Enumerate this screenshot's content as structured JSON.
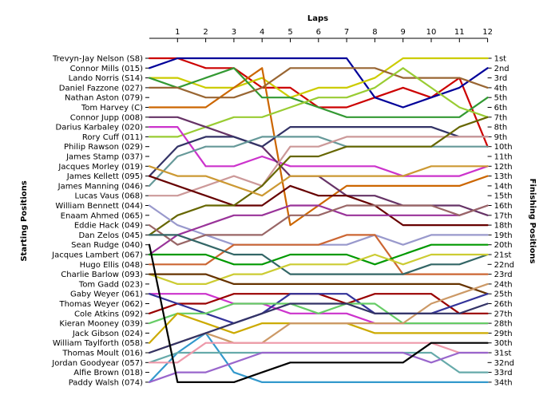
{
  "chart_data": {
    "type": "line",
    "title": "",
    "xlabel": "Laps",
    "ylabel_left": "Starting Positions",
    "ylabel_right": "Finishing Positions",
    "x": [
      0,
      1,
      2,
      3,
      4,
      5,
      6,
      7,
      8,
      9,
      10,
      11,
      12
    ],
    "x_tick_labels": [
      "1",
      "2",
      "3",
      "4",
      "5",
      "6",
      "7",
      "8",
      "9",
      "10",
      "11",
      "12"
    ],
    "y_range": [
      1,
      34
    ],
    "y_inverted": true,
    "grid": false,
    "starting_labels": [
      "Trevyn-Jay Nelson (S8)",
      "Connor Mills (015)",
      "Lando Norris (S14)",
      "Daniel Fazzone (027)",
      "Nathan Aston (079)",
      "Tom Harvey (C)",
      "Connor Jupp (008)",
      "Darius Karbaley (020)",
      "Rory Cuff (011)",
      "Philip Rawson (029)",
      "James Stamp (037)",
      "Jacques Morley (019)",
      "James Kellett (095)",
      "James Manning (046)",
      "Lucas Vaus (068)",
      "William Bennett (044)",
      "Enaam Ahmed (065)",
      "Eddie Hack (049)",
      "Dan Zelos (045)",
      "Sean Rudge (040)",
      "Jacques Lambert (067)",
      "Hugo Ellis (048)",
      "Charlie Barlow (093)",
      "Tom Gadd (023)",
      "Gaby Weyer (061)",
      "Thomas Weyer (062)",
      "Cole Atkins (092)",
      "Kieran Mooney (039)",
      "Jack Gibson (024)",
      "William Taylforth (058)",
      "Thomas Moult (016)",
      "Jordan Goodyear (057)",
      "Alfie Brown (018)",
      "Paddy Walsh (074)"
    ],
    "finishing_labels": [
      "1st",
      "2nd",
      "3rd",
      "4th",
      "5th",
      "6th",
      "7th",
      "8th",
      "9th",
      "10th",
      "11th",
      "12th",
      "13th",
      "14th",
      "15th",
      "16th",
      "17th",
      "18th",
      "19th",
      "20th",
      "21st",
      "22nd",
      "23rd",
      "24th",
      "25th",
      "26th",
      "27th",
      "28th",
      "29th",
      "30th",
      "31st",
      "32nd",
      "33rd",
      "34th"
    ],
    "series": [
      {
        "color": "#cc0000",
        "values": [
          1,
          1,
          2,
          2,
          4,
          4,
          6,
          6,
          5,
          4,
          5,
          3,
          10
        ]
      },
      {
        "color": "#000099",
        "values": [
          2,
          1,
          1,
          1,
          1,
          1,
          1,
          1,
          5,
          6,
          5,
          4,
          2
        ]
      },
      {
        "color": "#3399cc",
        "values": [
          34,
          31,
          29,
          33,
          34,
          34,
          34,
          34,
          34,
          34,
          34,
          34,
          34
        ]
      },
      {
        "color": "#cccc00",
        "values": [
          3,
          3,
          4,
          4,
          3,
          5,
          4,
          4,
          3,
          1,
          1,
          1,
          1
        ]
      },
      {
        "color": "#cc6600",
        "values": [
          6,
          6,
          6,
          4,
          2,
          18,
          16,
          14,
          14,
          14,
          14,
          14,
          13
        ]
      },
      {
        "color": "#339933",
        "values": [
          3,
          4,
          3,
          2,
          5,
          5,
          6,
          7,
          7,
          7,
          7,
          7,
          5
        ]
      },
      {
        "color": "#996633",
        "values": [
          4,
          4,
          5,
          5,
          4,
          2,
          2,
          2,
          2,
          3,
          3,
          3,
          4
        ]
      },
      {
        "color": "#99cc33",
        "values": [
          9,
          9,
          8,
          7,
          7,
          6,
          5,
          5,
          4,
          2,
          4,
          6,
          7
        ]
      },
      {
        "color": "#cc33cc",
        "values": [
          8,
          8,
          12,
          12,
          11,
          12,
          12,
          12,
          12,
          13,
          13,
          13,
          12
        ]
      },
      {
        "color": "#663366",
        "values": [
          7,
          7,
          8,
          9,
          10,
          13,
          13,
          15,
          15,
          16,
          16,
          16,
          17
        ]
      },
      {
        "color": "#333366",
        "values": [
          13,
          10,
          9,
          9,
          10,
          8,
          8,
          8,
          8,
          8,
          8,
          9,
          9
        ]
      },
      {
        "color": "#669999",
        "values": [
          14,
          11,
          10,
          10,
          9,
          9,
          9,
          10,
          10,
          10,
          10,
          10,
          10
        ]
      },
      {
        "color": "#cc9999",
        "values": [
          15,
          15,
          14,
          13,
          14,
          10,
          10,
          9,
          9,
          9,
          9,
          9,
          9
        ]
      },
      {
        "color": "#660000",
        "values": [
          13,
          14,
          15,
          16,
          16,
          14,
          15,
          15,
          16,
          18,
          18,
          18,
          18
        ]
      },
      {
        "color": "#666600",
        "values": [
          19,
          17,
          16,
          16,
          14,
          11,
          11,
          10,
          10,
          10,
          10,
          8,
          7
        ]
      },
      {
        "color": "#cc9933",
        "values": [
          12,
          13,
          13,
          14,
          15,
          13,
          13,
          13,
          13,
          13,
          12,
          12,
          12
        ]
      },
      {
        "color": "#9999cc",
        "values": [
          16,
          18,
          19,
          20,
          20,
          20,
          20,
          20,
          19,
          20,
          19,
          19,
          19
        ]
      },
      {
        "color": "#993399",
        "values": [
          21,
          19,
          18,
          17,
          17,
          16,
          16,
          17,
          17,
          17,
          17,
          17,
          16
        ]
      },
      {
        "color": "#996666",
        "values": [
          18,
          20,
          19,
          19,
          19,
          17,
          17,
          16,
          16,
          16,
          16,
          17,
          16
        ]
      },
      {
        "color": "#cc6633",
        "values": [
          22,
          22,
          22,
          20,
          20,
          20,
          20,
          19,
          19,
          23,
          23,
          23,
          23
        ]
      },
      {
        "color": "#009900",
        "values": [
          21,
          21,
          21,
          22,
          22,
          21,
          21,
          21,
          22,
          21,
          20,
          20,
          20
        ]
      },
      {
        "color": "#336666",
        "values": [
          19,
          19,
          20,
          21,
          21,
          23,
          23,
          23,
          23,
          23,
          22,
          22,
          21
        ]
      },
      {
        "color": "#cccc33",
        "values": [
          23,
          24,
          24,
          23,
          23,
          22,
          22,
          22,
          21,
          22,
          21,
          21,
          21
        ]
      },
      {
        "color": "#663300",
        "values": [
          23,
          23,
          23,
          24,
          24,
          24,
          24,
          24,
          24,
          24,
          24,
          24,
          25
        ]
      },
      {
        "color": "#cc33cc",
        "values": [
          25,
          25,
          25,
          26,
          26,
          27,
          27,
          27,
          28,
          28,
          28,
          28,
          28
        ]
      },
      {
        "color": "#990000",
        "values": [
          27,
          26,
          26,
          25,
          25,
          25,
          25,
          26,
          25,
          25,
          25,
          27,
          27
        ]
      },
      {
        "color": "#333399",
        "values": [
          25,
          26,
          27,
          28,
          27,
          25,
          25,
          25,
          27,
          27,
          27,
          26,
          25
        ]
      },
      {
        "color": "#66cc66",
        "values": [
          28,
          27,
          27,
          26,
          26,
          26,
          27,
          26,
          26,
          28,
          28,
          28,
          28
        ]
      },
      {
        "color": "#ccaa00",
        "values": [
          30,
          27,
          28,
          29,
          28,
          28,
          28,
          28,
          29,
          29,
          29,
          29,
          29
        ]
      },
      {
        "color": "#cc9966",
        "values": [
          31,
          30,
          29,
          30,
          30,
          28,
          28,
          28,
          28,
          28,
          26,
          25,
          24
        ]
      },
      {
        "color": "#333366",
        "values": [
          31,
          30,
          29,
          28,
          27,
          26,
          26,
          26,
          27,
          27,
          27,
          27,
          26
        ]
      },
      {
        "color": "#66aaaa",
        "values": [
          32,
          31,
          31,
          31,
          31,
          31,
          31,
          31,
          31,
          31,
          31,
          33,
          33
        ]
      },
      {
        "color": "#ee99aa",
        "values": [
          32,
          32,
          30,
          30,
          30,
          30,
          30,
          30,
          30,
          30,
          30,
          31,
          31
        ]
      },
      {
        "color": "#9966cc",
        "values": [
          34,
          33,
          33,
          32,
          31,
          31,
          31,
          31,
          31,
          31,
          32,
          31,
          31
        ]
      },
      {
        "color": "#000000",
        "values": [
          20,
          34,
          34,
          34,
          33,
          32,
          32,
          32,
          32,
          32,
          30,
          30,
          30
        ]
      }
    ]
  }
}
